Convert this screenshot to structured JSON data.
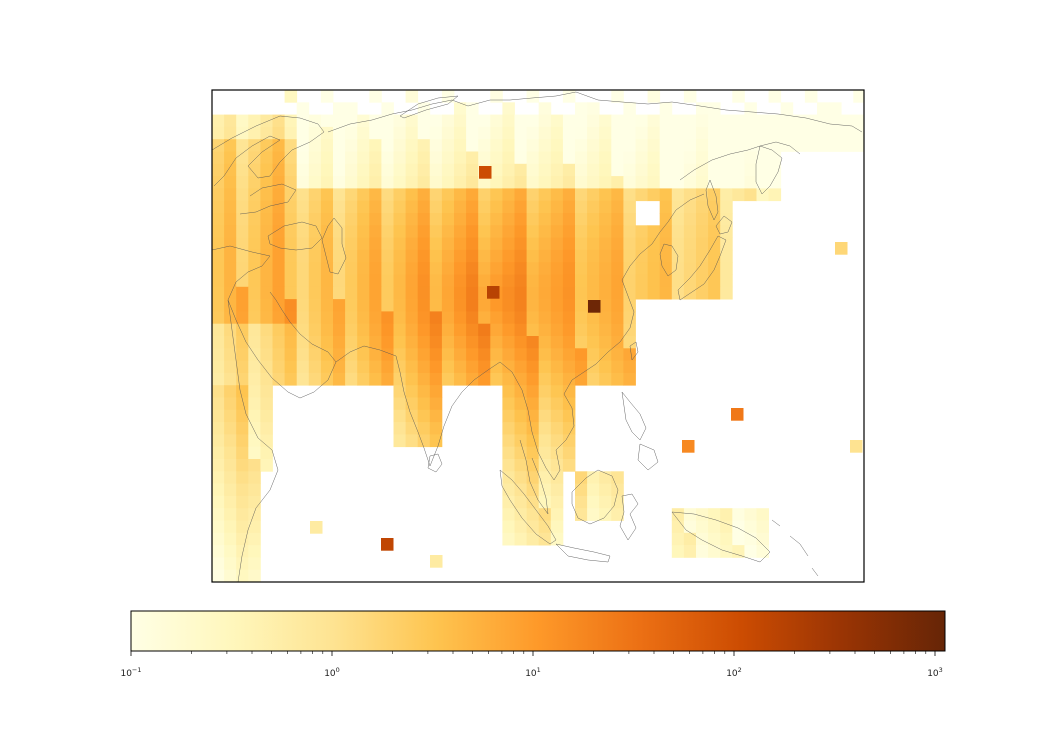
{
  "map": {
    "type": "gridded-heatmap",
    "region": "Asia",
    "colormap": "YlOrBr",
    "scale": "log",
    "coastlines": true,
    "colorbar_placement": "bottom"
  },
  "colorbar": {
    "range": [
      0.1,
      1200
    ],
    "ticks": [
      {
        "base": "10",
        "exp": "−1",
        "value": 0.1
      },
      {
        "base": "10",
        "exp": "0",
        "value": 1
      },
      {
        "base": "10",
        "exp": "1",
        "value": 10
      },
      {
        "base": "10",
        "exp": "2",
        "value": 100
      },
      {
        "base": "10",
        "exp": "3",
        "value": 1000
      }
    ],
    "colors": [
      "#ffffe5",
      "#fff7bc",
      "#fee391",
      "#fec44f",
      "#fe9929",
      "#ec7014",
      "#cc4c02",
      "#993404",
      "#662506"
    ]
  }
}
